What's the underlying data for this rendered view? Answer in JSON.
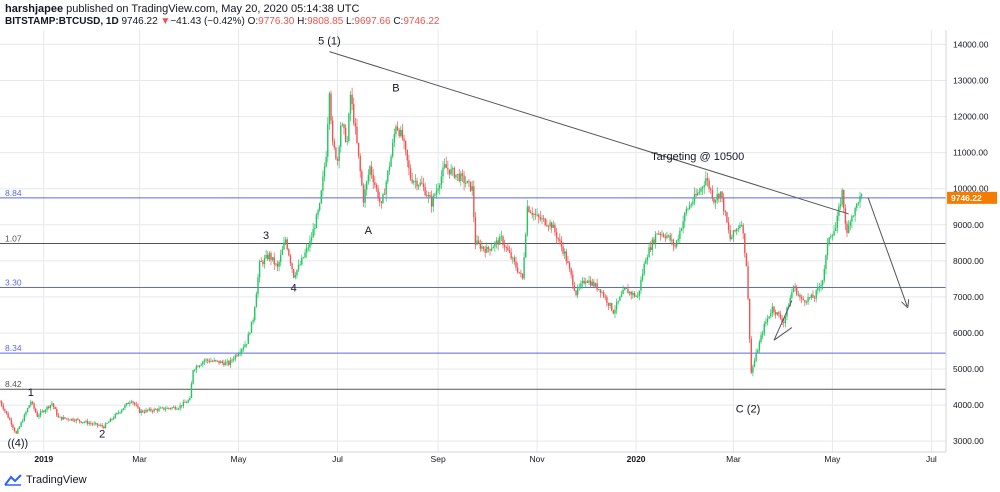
{
  "header": {
    "publisher": "harshjapee",
    "published_text": "published on TradingView.com, May 20, 2020 05:14:38 UTC",
    "symbol": "BITSTAMP:BTCUSD, 1D",
    "last": "9746.22",
    "change_arrow": "▼",
    "change": "−41.43 (−0.42%)",
    "o_label": "O:",
    "o_val": "9776.30",
    "h_label": "H:",
    "h_val": "9808.85",
    "l_label": "L:",
    "l_val": "9697.66",
    "c_label": "C:",
    "c_val": "9746.22"
  },
  "footer": {
    "brand": "TradingView"
  },
  "colors": {
    "up": "#26a69a",
    "up_bright": "#22c55e",
    "down": "#ef5350",
    "fib_blue": "#5b67e8",
    "fib_dark": "#555555",
    "price_tag": "#f57c00",
    "grid": "#e6e8ec",
    "trend": "#555555"
  },
  "chart_data": {
    "type": "candlestick",
    "symbol": "BITSTAMP:BTCUSD",
    "interval": "1D",
    "y_axis": {
      "min": 2700,
      "max": 14400,
      "ticks": [
        3000,
        4000,
        5000,
        6000,
        7000,
        8000,
        9000,
        10000,
        11000,
        12000,
        13000,
        14000
      ],
      "tick_labels": [
        "3000.00",
        "4000.00",
        "5000.00",
        "6000.00",
        "7000.00",
        "8000.00",
        "9000.00",
        "10000.00",
        "11000.00",
        "12000.00",
        "13000.00",
        "14000.00"
      ]
    },
    "x_axis": {
      "start": "2018-12-05",
      "end": "2020-07-10",
      "tick_labels": [
        {
          "date": "2019-01-01",
          "label": "2019",
          "bold": true
        },
        {
          "date": "2019-03-01",
          "label": "Mar",
          "bold": false
        },
        {
          "date": "2019-05-01",
          "label": "May",
          "bold": false
        },
        {
          "date": "2019-07-01",
          "label": "Jul",
          "bold": false
        },
        {
          "date": "2019-09-01",
          "label": "Sep",
          "bold": false
        },
        {
          "date": "2019-11-01",
          "label": "Nov",
          "bold": false
        },
        {
          "date": "2020-01-01",
          "label": "2020",
          "bold": true
        },
        {
          "date": "2020-03-01",
          "label": "Mar",
          "bold": false
        },
        {
          "date": "2020-05-01",
          "label": "May",
          "bold": false
        },
        {
          "date": "2020-07-01",
          "label": "Jul",
          "bold": false
        }
      ]
    },
    "price_path": [
      {
        "date": "2018-12-05",
        "price": 4100
      },
      {
        "date": "2018-12-12",
        "price": 3500
      },
      {
        "date": "2018-12-15",
        "price": 3200
      },
      {
        "date": "2018-12-24",
        "price": 4100
      },
      {
        "date": "2018-12-28",
        "price": 3700
      },
      {
        "date": "2019-01-06",
        "price": 4050
      },
      {
        "date": "2019-01-10",
        "price": 3650
      },
      {
        "date": "2019-01-20",
        "price": 3600
      },
      {
        "date": "2019-02-07",
        "price": 3400
      },
      {
        "date": "2019-02-24",
        "price": 4150
      },
      {
        "date": "2019-03-01",
        "price": 3820
      },
      {
        "date": "2019-03-25",
        "price": 3950
      },
      {
        "date": "2019-04-01",
        "price": 4150
      },
      {
        "date": "2019-04-03",
        "price": 5000
      },
      {
        "date": "2019-04-10",
        "price": 5250
      },
      {
        "date": "2019-04-25",
        "price": 5150
      },
      {
        "date": "2019-05-06",
        "price": 5750
      },
      {
        "date": "2019-05-10",
        "price": 6400
      },
      {
        "date": "2019-05-14",
        "price": 7900
      },
      {
        "date": "2019-05-20",
        "price": 8150
      },
      {
        "date": "2019-05-25",
        "price": 7800
      },
      {
        "date": "2019-05-30",
        "price": 8600
      },
      {
        "date": "2019-06-04",
        "price": 7600
      },
      {
        "date": "2019-06-08",
        "price": 7900
      },
      {
        "date": "2019-06-14",
        "price": 8500
      },
      {
        "date": "2019-06-20",
        "price": 9500
      },
      {
        "date": "2019-06-24",
        "price": 11000
      },
      {
        "date": "2019-06-26",
        "price": 12800
      },
      {
        "date": "2019-06-28",
        "price": 11200
      },
      {
        "date": "2019-07-01",
        "price": 10800
      },
      {
        "date": "2019-07-03",
        "price": 11800
      },
      {
        "date": "2019-07-07",
        "price": 11300
      },
      {
        "date": "2019-07-09",
        "price": 12600
      },
      {
        "date": "2019-07-12",
        "price": 11600
      },
      {
        "date": "2019-07-17",
        "price": 9700
      },
      {
        "date": "2019-07-21",
        "price": 10600
      },
      {
        "date": "2019-07-28",
        "price": 9500
      },
      {
        "date": "2019-08-03",
        "price": 10900
      },
      {
        "date": "2019-08-06",
        "price": 11800
      },
      {
        "date": "2019-08-10",
        "price": 11400
      },
      {
        "date": "2019-08-15",
        "price": 10300
      },
      {
        "date": "2019-08-22",
        "price": 10100
      },
      {
        "date": "2019-08-28",
        "price": 9600
      },
      {
        "date": "2019-09-05",
        "price": 10600
      },
      {
        "date": "2019-09-15",
        "price": 10300
      },
      {
        "date": "2019-09-22",
        "price": 10000
      },
      {
        "date": "2019-09-24",
        "price": 8500
      },
      {
        "date": "2019-10-01",
        "price": 8300
      },
      {
        "date": "2019-10-10",
        "price": 8600
      },
      {
        "date": "2019-10-23",
        "price": 7500
      },
      {
        "date": "2019-10-26",
        "price": 9500
      },
      {
        "date": "2019-11-01",
        "price": 9200
      },
      {
        "date": "2019-11-10",
        "price": 9000
      },
      {
        "date": "2019-11-18",
        "price": 8200
      },
      {
        "date": "2019-11-25",
        "price": 7100
      },
      {
        "date": "2019-12-01",
        "price": 7500
      },
      {
        "date": "2019-12-10",
        "price": 7200
      },
      {
        "date": "2019-12-18",
        "price": 6600
      },
      {
        "date": "2019-12-25",
        "price": 7200
      },
      {
        "date": "2020-01-02",
        "price": 7000
      },
      {
        "date": "2020-01-07",
        "price": 8100
      },
      {
        "date": "2020-01-14",
        "price": 8800
      },
      {
        "date": "2020-01-20",
        "price": 8700
      },
      {
        "date": "2020-01-25",
        "price": 8400
      },
      {
        "date": "2020-02-01",
        "price": 9400
      },
      {
        "date": "2020-02-10",
        "price": 10000
      },
      {
        "date": "2020-02-13",
        "price": 10300
      },
      {
        "date": "2020-02-18",
        "price": 9700
      },
      {
        "date": "2020-02-22",
        "price": 9900
      },
      {
        "date": "2020-02-28",
        "price": 8600
      },
      {
        "date": "2020-03-06",
        "price": 9100
      },
      {
        "date": "2020-03-09",
        "price": 7900
      },
      {
        "date": "2020-03-12",
        "price": 4900
      },
      {
        "date": "2020-03-15",
        "price": 5400
      },
      {
        "date": "2020-03-20",
        "price": 6200
      },
      {
        "date": "2020-03-25",
        "price": 6700
      },
      {
        "date": "2020-04-01",
        "price": 6300
      },
      {
        "date": "2020-04-07",
        "price": 7300
      },
      {
        "date": "2020-04-12",
        "price": 6900
      },
      {
        "date": "2020-04-20",
        "price": 7000
      },
      {
        "date": "2020-04-25",
        "price": 7500
      },
      {
        "date": "2020-04-29",
        "price": 8700
      },
      {
        "date": "2020-05-03",
        "price": 8900
      },
      {
        "date": "2020-05-07",
        "price": 9900
      },
      {
        "date": "2020-05-10",
        "price": 8700
      },
      {
        "date": "2020-05-12",
        "price": 9200
      },
      {
        "date": "2020-05-15",
        "price": 9400
      },
      {
        "date": "2020-05-17",
        "price": 9700
      },
      {
        "date": "2020-05-19",
        "price": 9746.22
      }
    ],
    "horizontal_levels": [
      {
        "price": 9746.22,
        "label": "8.84",
        "style": "blue"
      },
      {
        "price": 8480,
        "label": "1.07",
        "style": "dark"
      },
      {
        "price": 7260,
        "label": "3.30",
        "style": "blue"
      },
      {
        "price": 5440,
        "label": "8.34",
        "style": "blue"
      },
      {
        "price": 4440,
        "label": "8.42",
        "style": "dark"
      }
    ],
    "trendlines": [
      {
        "from": {
          "date": "2019-06-26",
          "price": 13800
        },
        "to": {
          "date": "2020-05-11",
          "price": 9300
        },
        "arrow": false
      },
      {
        "from": {
          "date": "2020-05-23",
          "price": 9750
        },
        "to": {
          "date": "2020-06-16",
          "price": 6750
        },
        "arrow": true
      }
    ],
    "triangle": [
      {
        "date": "2020-03-26",
        "price": 5800
      },
      {
        "date": "2020-04-06",
        "price": 6900
      },
      {
        "date": "2020-04-06",
        "price": 6150
      }
    ],
    "annotations": [
      {
        "text": "5 (1)",
        "date": "2019-06-26",
        "price": 14000
      },
      {
        "text": "B",
        "date": "2019-08-06",
        "price": 12700
      },
      {
        "text": "A",
        "date": "2019-07-20",
        "price": 8750
      },
      {
        "text": "3",
        "date": "2019-05-18",
        "price": 8600
      },
      {
        "text": "4",
        "date": "2019-06-04",
        "price": 7150
      },
      {
        "text": "1",
        "date": "2018-12-24",
        "price": 4250
      },
      {
        "text": "2",
        "date": "2019-02-06",
        "price": 3100
      },
      {
        "text": "((4))",
        "date": "2018-12-16",
        "price": 2850
      },
      {
        "text": "C (2)",
        "date": "2020-03-10",
        "price": 3800
      },
      {
        "text": "Targeting @ 10500",
        "date": "2020-02-08",
        "price": 10800
      }
    ],
    "last_price_label": "9746.22"
  }
}
